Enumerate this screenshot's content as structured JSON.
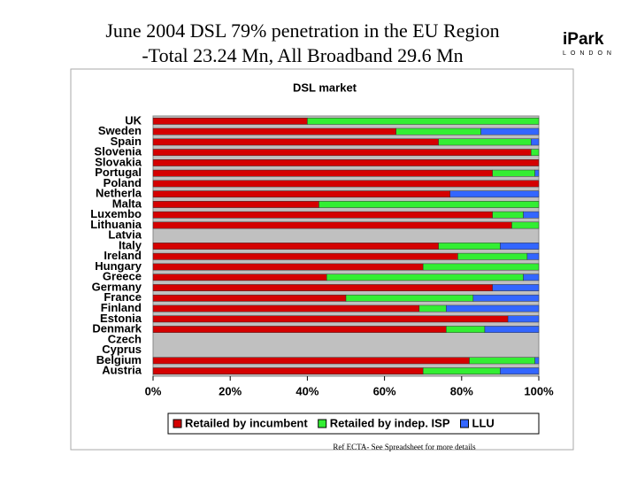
{
  "slide": {
    "title_lines": [
      "June 2004 DSL 79% penetration in the EU Region",
      "-Total 23.24 Mn, All Broadband 29.6 Mn"
    ],
    "logo": {
      "name": "iPark",
      "city": "LONDON"
    },
    "footnote": "Ref ECTA- See Spreadsheet for more details"
  },
  "chart_data": {
    "type": "stacked-bar-horizontal",
    "title": "DSL market",
    "categories": [
      "UK",
      "Sweden",
      "Spain",
      "Slovenia",
      "Slovakia",
      "Portugal",
      "Poland",
      "Netherla",
      "Malta",
      "Luxembo",
      "Lithuania",
      "Latvia",
      "Italy",
      "Ireland",
      "Hungary",
      "Greece",
      "Germany",
      "France",
      "Finland",
      "Estonia",
      "Denmark",
      "Czech",
      "Cyprus",
      "Belgium",
      "Austria"
    ],
    "series": [
      {
        "name": "Retailed by incumbent",
        "color": "#d40000",
        "values": [
          40,
          63,
          74,
          98,
          100,
          88,
          100,
          77,
          43,
          88,
          93,
          null,
          74,
          79,
          70,
          45,
          88,
          50,
          69,
          92,
          76,
          null,
          null,
          82,
          70
        ]
      },
      {
        "name": "Retailed by indep. ISP",
        "color": "#33ee33",
        "values": [
          60,
          22,
          24,
          2,
          0,
          11,
          0,
          0,
          57,
          8,
          7,
          null,
          16,
          18,
          30,
          51,
          0,
          33,
          7,
          0,
          10,
          null,
          null,
          17,
          20
        ]
      },
      {
        "name": "LLU",
        "color": "#3366ff",
        "values": [
          0,
          15,
          2,
          0,
          0,
          1,
          0,
          23,
          0,
          4,
          0,
          null,
          10,
          3,
          0,
          4,
          12,
          17,
          24,
          8,
          14,
          null,
          null,
          1,
          10
        ]
      }
    ],
    "xlim": [
      0,
      100
    ],
    "xticks": [
      {
        "value": 0,
        "label": "0%"
      },
      {
        "value": 20,
        "label": "20%"
      },
      {
        "value": 40,
        "label": "40%"
      },
      {
        "value": 60,
        "label": "60%"
      },
      {
        "value": 80,
        "label": "80%"
      },
      {
        "value": 100,
        "label": "100%"
      }
    ],
    "plot_background": "#c0c0c0",
    "legend": "bottom"
  }
}
